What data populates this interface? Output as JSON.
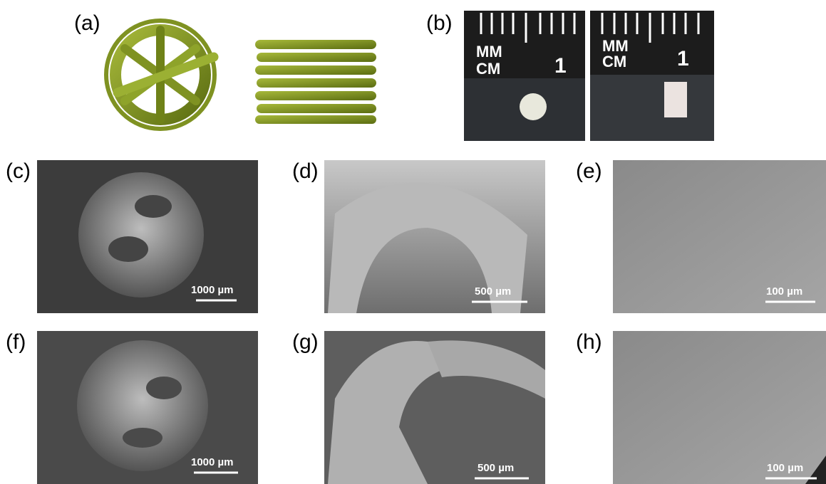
{
  "panels": [
    {
      "label": "(a)"
    },
    {
      "label": "(b)",
      "photos": [
        {
          "ruler": [
            "MM",
            "CM",
            "1"
          ]
        },
        {
          "ruler": [
            "MM",
            "CM",
            "1"
          ]
        }
      ]
    },
    {
      "label": "(c)",
      "scale_bar": "1000 µm"
    },
    {
      "label": "(d)",
      "scale_bar": "500 µm"
    },
    {
      "label": "(e)",
      "scale_bar": "100 µm"
    },
    {
      "label": "(f)",
      "scale_bar": "1000 µm"
    },
    {
      "label": "(g)",
      "scale_bar": "500 µm"
    },
    {
      "label": "(h)",
      "scale_bar": "100 µm"
    }
  ]
}
